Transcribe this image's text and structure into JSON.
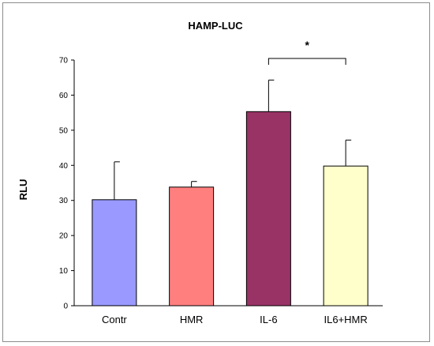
{
  "chart_data": {
    "type": "bar",
    "title": "HAMP-LUC",
    "xlabel": "",
    "ylabel": "RLU",
    "ylim": [
      0,
      70
    ],
    "yticks": [
      0,
      10,
      20,
      30,
      40,
      50,
      60,
      70
    ],
    "categories": [
      "Contr",
      "HMR",
      "IL-6",
      "IL6+HMR"
    ],
    "values": [
      30.2,
      33.8,
      55.3,
      39.8
    ],
    "errors": [
      10.8,
      1.6,
      9.0,
      7.4
    ],
    "colors": [
      "#9999ff",
      "#ff7f7f",
      "#993366",
      "#ffffcc"
    ],
    "grid": false,
    "legend": "none",
    "significance": [
      {
        "from": "IL-6",
        "to": "IL6+HMR",
        "label": "*"
      }
    ]
  }
}
